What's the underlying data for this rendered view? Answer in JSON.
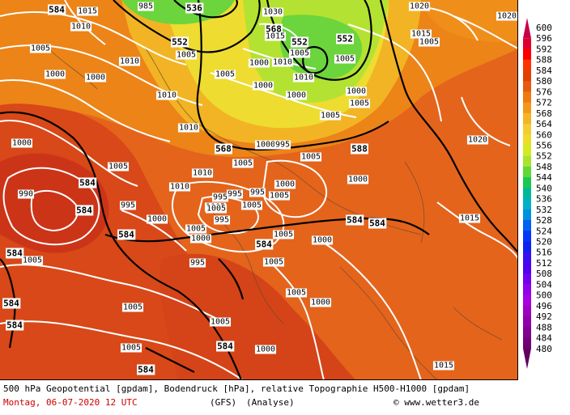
{
  "caption": {
    "description": "500 hPa Geopotential [gpdam], Bodendruck [hPa], relative Topographie H500-H1000 [gpdam]",
    "date": "Montag, 06-07-2020  12 UTC",
    "model": "(GFS)",
    "run_type": "(Analyse)",
    "copyright": "© www.wetter3.de"
  },
  "colorbar": {
    "labels": [
      "600",
      "596",
      "592",
      "588",
      "584",
      "580",
      "576",
      "572",
      "568",
      "564",
      "560",
      "556",
      "552",
      "548",
      "544",
      "540",
      "536",
      "532",
      "528",
      "524",
      "520",
      "516",
      "512",
      "508",
      "504",
      "500",
      "496",
      "492",
      "488",
      "484",
      "480"
    ],
    "colors": [
      "#c8004a",
      "#e0002c",
      "#ff0000",
      "#ff3300",
      "#e04000",
      "#e85a10",
      "#ee7a10",
      "#f29818",
      "#f4b424",
      "#f4cc30",
      "#eedc28",
      "#d2ea22",
      "#a8e42c",
      "#60d838",
      "#18c850",
      "#00b898",
      "#00b0c8",
      "#0090e0",
      "#0060f0",
      "#0038f8",
      "#1020f0",
      "#3810f0",
      "#5000f0",
      "#7000f0",
      "#9000e8",
      "#a800e0",
      "#a000c0",
      "#9000a8",
      "#800090",
      "#700078",
      "#600060"
    ]
  },
  "geopotential_labels": [
    {
      "text": "584"
    },
    {
      "text": "536"
    },
    {
      "text": "552"
    },
    {
      "text": "568"
    },
    {
      "text": "552"
    },
    {
      "text": "552"
    },
    {
      "text": "568"
    },
    {
      "text": "588"
    },
    {
      "text": "584"
    },
    {
      "text": "584"
    },
    {
      "text": "584"
    },
    {
      "text": "584"
    },
    {
      "text": "584"
    },
    {
      "text": "584"
    },
    {
      "text": "584"
    },
    {
      "text": "584"
    },
    {
      "text": "584"
    },
    {
      "text": "584"
    },
    {
      "text": "584"
    }
  ],
  "pressure_labels": [
    {
      "text": "1015"
    },
    {
      "text": "1010"
    },
    {
      "text": "985"
    },
    {
      "text": "1030"
    },
    {
      "text": "1020"
    },
    {
      "text": "1020"
    },
    {
      "text": "1005"
    },
    {
      "text": "1000"
    },
    {
      "text": "1010"
    },
    {
      "text": "1005"
    },
    {
      "text": "1000"
    },
    {
      "text": "1010"
    },
    {
      "text": "1005"
    },
    {
      "text": "1015"
    },
    {
      "text": "1010"
    },
    {
      "text": "1015"
    },
    {
      "text": "1005"
    },
    {
      "text": "1005"
    },
    {
      "text": "1000"
    },
    {
      "text": "1010"
    },
    {
      "text": "1010"
    },
    {
      "text": "1000"
    },
    {
      "text": "1000"
    },
    {
      "text": "1005"
    },
    {
      "text": "1005"
    },
    {
      "text": "1000"
    },
    {
      "text": "1005"
    },
    {
      "text": "1020"
    },
    {
      "text": "1005"
    },
    {
      "text": "1010"
    },
    {
      "text": "1010"
    },
    {
      "text": "995"
    },
    {
      "text": "995"
    },
    {
      "text": "1000"
    },
    {
      "text": "1005"
    },
    {
      "text": "1005"
    },
    {
      "text": "1000"
    },
    {
      "text": "995"
    },
    {
      "text": "1000"
    },
    {
      "text": "990"
    },
    {
      "text": "995"
    },
    {
      "text": "995"
    },
    {
      "text": "1000"
    },
    {
      "text": "1005"
    },
    {
      "text": "1005"
    },
    {
      "text": "995"
    },
    {
      "text": "995"
    },
    {
      "text": "1005"
    },
    {
      "text": "1000"
    },
    {
      "text": "1005"
    },
    {
      "text": "1005"
    },
    {
      "text": "1000"
    },
    {
      "text": "1005"
    },
    {
      "text": "1000"
    },
    {
      "text": "1005"
    },
    {
      "text": "1015"
    },
    {
      "text": "1005"
    },
    {
      "text": "1005"
    },
    {
      "text": "1005"
    },
    {
      "text": "1000"
    },
    {
      "text": "1005"
    },
    {
      "text": "1005"
    },
    {
      "text": "1015"
    },
    {
      "text": "1000"
    }
  ]
}
